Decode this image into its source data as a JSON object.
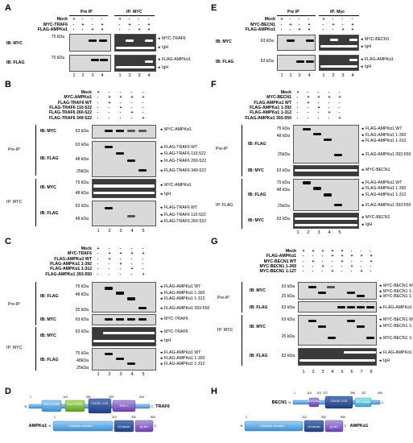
{
  "panels": {
    "A": {
      "letter": "A",
      "headers": [
        "Pre IP",
        "IP: MYC"
      ],
      "conditions": [
        {
          "label": "Mock",
          "signs": [
            "+",
            "-",
            "-",
            "-",
            "+",
            "-",
            "-",
            "-"
          ]
        },
        {
          "label": "MYC-TRAF6",
          "signs": [
            "-",
            "+",
            "-",
            "+",
            "-",
            "+",
            "-",
            "+"
          ]
        },
        {
          "label": "FLAG-AMPKα1",
          "signs": [
            "-",
            "-",
            "+",
            "+",
            "-",
            "-",
            "+",
            "+"
          ]
        }
      ],
      "ib": [
        "IB: MYC",
        "IB: FLAG"
      ],
      "kda": [
        "75 kDa",
        "75 kDa"
      ],
      "bands": [
        "MYC-TRAF6",
        "IgH",
        "FLAG-AMPKα1",
        "IgH"
      ],
      "lanes": [
        "1",
        "2",
        "3",
        "4",
        "1",
        "2",
        "3",
        "4"
      ]
    },
    "B": {
      "letter": "B",
      "conditions": [
        {
          "label": "Mock",
          "signs": [
            "+",
            "-",
            "-",
            "-",
            "-"
          ]
        },
        {
          "label": "MYC-AMPKα1",
          "signs": [
            "-",
            "+",
            "+",
            "+",
            "+"
          ]
        },
        {
          "label": "FLAG-TRAF6 WT",
          "signs": [
            "-",
            "+",
            "-",
            "-",
            "-"
          ]
        },
        {
          "label": "FLAG-TRAF6 110-522",
          "signs": [
            "-",
            "-",
            "+",
            "-",
            "-"
          ]
        },
        {
          "label": "FLAG-TRAF6 260-522",
          "signs": [
            "-",
            "-",
            "-",
            "+",
            "-"
          ]
        },
        {
          "label": "FLAG-TRAF6 349-522",
          "signs": [
            "-",
            "-",
            "-",
            "-",
            "+"
          ]
        }
      ],
      "sections": [
        "Pre-IP",
        "IP: MYC"
      ],
      "ib": [
        "IB: MYC",
        "IB: FLAG",
        "IB: MYC",
        "IB: FLAG"
      ],
      "kda": [
        "63 kDa",
        "63 kDa",
        "48 kDa",
        "25kDa",
        "75 kDa",
        "48 kDa",
        "63 kDa",
        "48 kDa"
      ],
      "bands": [
        "MYC-AMPKα1",
        "FLAG-TRAF6 WT",
        "FLAG-TRAF6 110-522",
        "FLAG-TRAF6 260-522",
        "FLAG-TRAF6 349-522",
        "MYC-AMPKα1",
        "IgH",
        "FLAG-TRAF6 WT",
        "FLAG-TRAF6 110-522",
        "FLAG-TRAF6 260-522"
      ],
      "lanes": [
        "1",
        "2",
        "3",
        "4",
        "5"
      ]
    },
    "C": {
      "letter": "C",
      "conditions": [
        {
          "label": "Mock",
          "signs": [
            "+",
            "-",
            "-",
            "-",
            "-"
          ]
        },
        {
          "label": "MYC-TRAF6",
          "signs": [
            "-",
            "+",
            "+",
            "+",
            "+"
          ]
        },
        {
          "label": "FLAG-AMPKα1 WT",
          "signs": [
            "-",
            "+",
            "-",
            "-",
            "-"
          ]
        },
        {
          "label": "FLAG-AMPKα1 1-392",
          "signs": [
            "-",
            "-",
            "+",
            "-",
            "-"
          ]
        },
        {
          "label": "FLAG-AMPKα1 1-312",
          "signs": [
            "-",
            "-",
            "-",
            "+",
            "-"
          ]
        },
        {
          "label": "FLAG-AMPKα1 393-550",
          "signs": [
            "-",
            "-",
            "-",
            "-",
            "+"
          ]
        }
      ],
      "sections": [
        "Pre-IP",
        "IP: MYC"
      ],
      "ib": [
        "IB: FLAG",
        "IB: MYC",
        "IB: MYC",
        "IB: FLAG"
      ],
      "kda": [
        "75 kDa",
        "48 kDa",
        "25 kDa",
        "63 kDa",
        "63 kDa",
        "75 kDa",
        "48kDa",
        "25kDa"
      ],
      "bands": [
        "FLAG-AMPKα1 WT",
        "FLAG-AMPKα1 1-392",
        "FLAG-AMPKα1 1-312",
        "FLAG-AMPKα1 393-550",
        "MYC-TRAF6",
        "MYC-TRAF6",
        "IgH",
        "FLAG-AMPKα1 WT",
        "FLAG-AMPKα1 1-392",
        "FLAG-AMPKα1 1-312"
      ],
      "lanes": [
        "1",
        "2",
        "3",
        "4",
        "5"
      ]
    },
    "D": {
      "letter": "D",
      "traf6": {
        "name": "TRAF6",
        "n": "N",
        "c": "C",
        "ticks": [
          "1",
          "110",
          "260",
          "349",
          "522"
        ],
        "domains": [
          "RING FINGER",
          "ZNC FINGER",
          "COILED -COIL",
          "TRAF-C"
        ]
      },
      "ampk": {
        "name": "AMPKα1",
        "n": "N",
        "c": "C",
        "ticks": [
          "1",
          "312",
          "392",
          "550"
        ],
        "domains": [
          "Catalytic domain",
          "AI Domain",
          "βγ-BD"
        ]
      }
    },
    "E": {
      "letter": "E",
      "headers": [
        "Pre IP",
        "IP: Myc"
      ],
      "conditions": [
        {
          "label": "Mock",
          "signs": [
            "+",
            "-",
            "-",
            "-",
            "+",
            "-",
            "-",
            "-"
          ]
        },
        {
          "label": "MYC-BECN1",
          "signs": [
            "-",
            "+",
            "-",
            "+",
            "-",
            "+",
            "-",
            "+"
          ]
        },
        {
          "label": "FLAG-AMPKα1",
          "signs": [
            "-",
            "-",
            "+",
            "+",
            "-",
            "-",
            "+",
            "+"
          ]
        }
      ],
      "ib": [
        "IB: MYC",
        "IB: FLAG"
      ],
      "kda": [
        "63 kDa",
        "63 kDa"
      ],
      "bands": [
        "MYC-BECN1",
        "IgH",
        "FLAG-AMPKα1",
        "IgH"
      ],
      "lanes": [
        "1",
        "2",
        "3",
        "4",
        "1",
        "2",
        "3",
        "4"
      ]
    },
    "F": {
      "letter": "F",
      "conditions": [
        {
          "label": "Mock",
          "signs": [
            "+",
            "-",
            "-",
            "-",
            "-"
          ]
        },
        {
          "label": "MYC-BECN1",
          "signs": [
            "-",
            "+",
            "+",
            "+",
            "+"
          ]
        },
        {
          "label": "FLAG-AMPKα1 WT",
          "signs": [
            "-",
            "+",
            "-",
            "-",
            "-"
          ]
        },
        {
          "label": "FLAG-AMPKα1 1-392",
          "signs": [
            "-",
            "-",
            "+",
            "-",
            "-"
          ]
        },
        {
          "label": "FLAG-AMPKα1 1-312",
          "signs": [
            "-",
            "-",
            "-",
            "+",
            "-"
          ]
        },
        {
          "label": "FLAG-AMPKα1 393-550",
          "signs": [
            "-",
            "-",
            "-",
            "-",
            "+"
          ]
        }
      ],
      "sections": [
        "Pre-IP",
        "IP: FLAG"
      ],
      "ib": [
        "IB: FLAG",
        "IB: MYC",
        "IB: FLAG",
        "IB: MYC"
      ],
      "kda": [
        "75 kDa",
        "48 kDa",
        "25kDa",
        "63 kDa",
        "75 kDa",
        "48 kDa",
        "25kDa",
        "63 kDa"
      ],
      "bands": [
        "FLAG-AMPKα1 WT",
        "FLAG-AMPKα1 1-392",
        "FLAG-AMPKα1 1-312",
        "FLAG-AMPKα1 393-550",
        "MYC-BECN1",
        "FLAG-AMPKα1 WT",
        "FLAG-AMPKα1 1-392",
        "FLAG-AMPKα1 1-312",
        "FLAG-AMPKα1 393-550",
        "MYC-BECN1",
        "IgH"
      ],
      "lanes": [
        "1",
        "2",
        "3",
        "4",
        "5"
      ]
    },
    "G": {
      "letter": "G",
      "conditions": [
        {
          "label": "Mock",
          "signs": [
            "+",
            "+",
            "+",
            "+",
            "+",
            "-",
            "-",
            "-"
          ]
        },
        {
          "label": "FLAG-AMPKα1",
          "signs": [
            "-",
            "-",
            "-",
            "+",
            "+",
            "+",
            "+",
            "+"
          ]
        },
        {
          "label": "MYC-BECN1 WT",
          "signs": [
            "-",
            "+",
            "-",
            "-",
            "+",
            "-",
            "-",
            "+"
          ]
        },
        {
          "label": "MYC-BECN1 1-269",
          "signs": [
            "-",
            "-",
            "+",
            "-",
            "-",
            "+",
            "-",
            "-"
          ]
        },
        {
          "label": "MYC-BECN1 1-127",
          "signs": [
            "-",
            "-",
            "-",
            "+",
            "-",
            "-",
            "+",
            "-"
          ]
        }
      ],
      "sections": [
        "Pre-IP",
        "IP: MYC"
      ],
      "ib": [
        "IB: MYC",
        "IB: FLAG",
        "IB: MYC",
        "IB: FLAG"
      ],
      "kda": [
        "63 kDa",
        "25 kDa",
        "63 kDa",
        "63 kDa",
        "25 kDa",
        "63 kDa"
      ],
      "bands": [
        "MYC-BECN1 WT",
        "MYC-BECN1 1-269",
        "MYC-BECN1 1-127",
        "FLAG-AMPKα1",
        "MYC-BECN1 WT",
        "MYC-BECN1 1-269",
        "MYC-BECN1 1-127",
        "FLAG-AMPKα1",
        "IgH"
      ],
      "lanes": [
        "1",
        "2",
        "3",
        "4",
        "5",
        "6",
        "7",
        "8"
      ]
    },
    "H": {
      "letter": "H",
      "becn1": {
        "name": "BECN1",
        "n": "N",
        "c": "C",
        "ticks": [
          "1",
          "114",
          "123",
          "127",
          "269",
          "337",
          "450"
        ],
        "domains": [
          "BH3 binding",
          "COILED -COIL",
          "ECD domain"
        ]
      },
      "ampk": {
        "name": "AMPKα1",
        "n": "N",
        "c": "C",
        "ticks": [
          "1",
          "312",
          "392",
          "550"
        ],
        "domains": [
          "Catalytic domain",
          "AI Domain",
          "βγ-BD"
        ]
      }
    }
  }
}
